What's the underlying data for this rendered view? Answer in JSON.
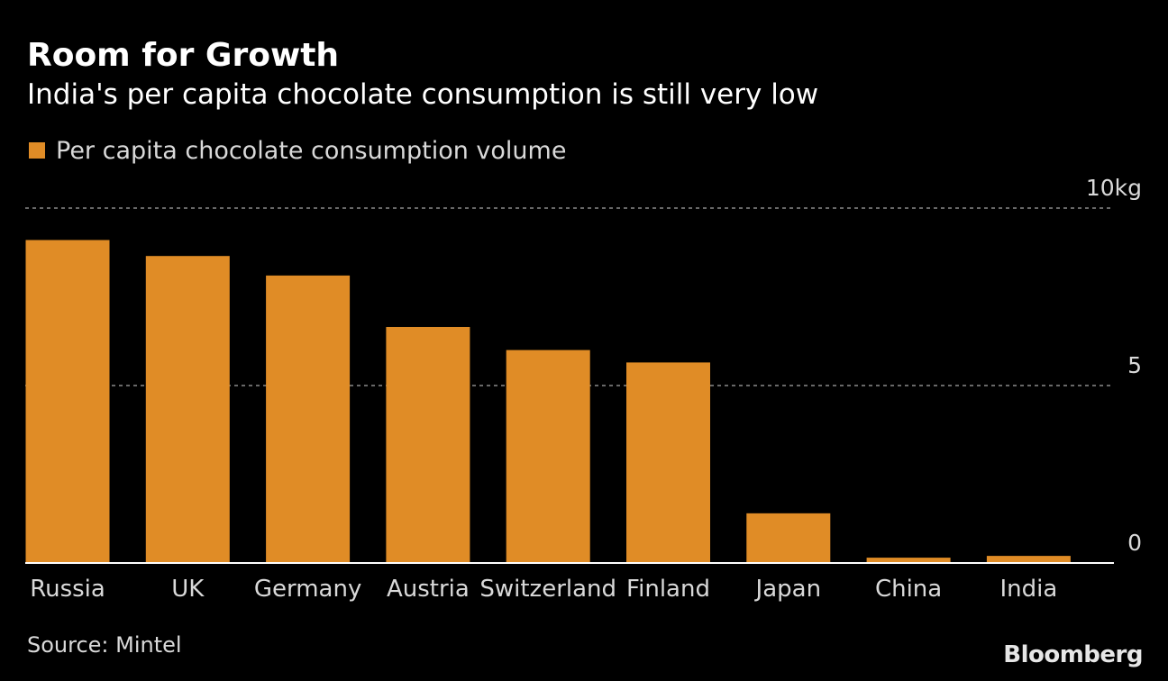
{
  "chart_data": {
    "type": "bar",
    "title": "Room for Growth",
    "subtitle": "India's per capita chocolate consumption is still very low",
    "legend": {
      "label": "Per capita chocolate consumption volume",
      "placement": "top-left"
    },
    "categories": [
      "Russia",
      "UK",
      "Germany",
      "Austria",
      "Switzerland",
      "Finland",
      "Japan",
      "China",
      "India"
    ],
    "series": [
      {
        "name": "Per capita chocolate consumption volume",
        "values": [
          9.1,
          8.65,
          8.1,
          6.65,
          6.0,
          5.65,
          1.4,
          0.15,
          0.2
        ]
      }
    ],
    "y_ticks": [
      {
        "value": 0,
        "label": "0"
      },
      {
        "value": 5,
        "label": "5"
      },
      {
        "value": 10,
        "label": "10kg"
      }
    ],
    "ylim": [
      0,
      10
    ],
    "grid": true,
    "xlabel": "",
    "ylabel": ""
  },
  "footer": {
    "source": "Source: Mintel",
    "logo_text": "Bloomberg"
  },
  "colors": {
    "bar": "#E08C26",
    "background": "#000000",
    "grid": "#8a8a8a",
    "axis": "#ffffff",
    "text": "#ffffff",
    "muted_text": "#d9d9d9"
  }
}
